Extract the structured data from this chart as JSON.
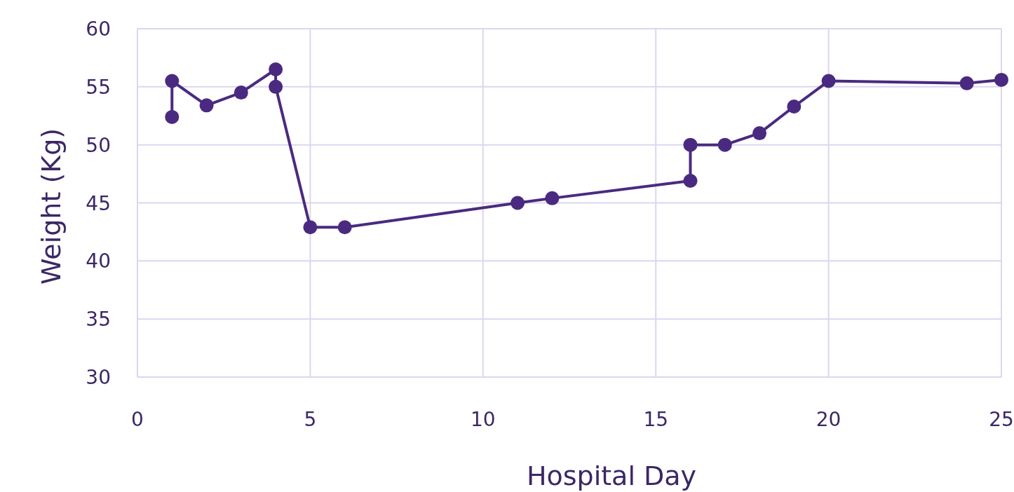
{
  "chart_data": {
    "type": "line",
    "xlabel": "Hospital Day",
    "ylabel": "Weight (Kg)",
    "xlim": [
      0,
      25
    ],
    "xticks": [
      0,
      5,
      10,
      15,
      20,
      25
    ],
    "ylim": [
      30,
      60
    ],
    "yticks": [
      30,
      35,
      40,
      45,
      50,
      55,
      60
    ],
    "grid": true,
    "marker": "circle",
    "line_style": "solid",
    "series": [
      {
        "color": "#4a2a80",
        "x": [
          1,
          1,
          2,
          3,
          4,
          4,
          5,
          6,
          11,
          12,
          16,
          16,
          17,
          18,
          19,
          20,
          24,
          25
        ],
        "values": [
          52.4,
          55.5,
          53.4,
          54.5,
          56.5,
          55,
          42.9,
          42.9,
          45,
          45.4,
          46.9,
          50,
          50,
          51,
          53.3,
          55.5,
          55.3,
          55.6
        ]
      }
    ]
  }
}
